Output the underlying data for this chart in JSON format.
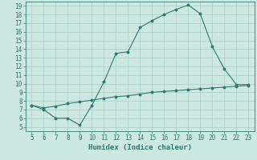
{
  "title": "",
  "xlabel": "Humidex (Indice chaleur)",
  "xlim": [
    4.5,
    23.5
  ],
  "ylim": [
    4.5,
    19.5
  ],
  "xticks": [
    5,
    6,
    7,
    8,
    9,
    10,
    11,
    12,
    13,
    14,
    15,
    16,
    17,
    18,
    19,
    20,
    21,
    22,
    23
  ],
  "yticks": [
    5,
    6,
    7,
    8,
    9,
    10,
    11,
    12,
    13,
    14,
    15,
    16,
    17,
    18,
    19
  ],
  "line1_x": [
    5,
    6,
    7,
    8,
    9,
    10,
    11,
    12,
    13,
    14,
    15,
    16,
    17,
    18,
    19,
    20,
    21,
    22,
    23
  ],
  "line1_y": [
    7.5,
    7.0,
    6.0,
    6.0,
    5.2,
    7.5,
    10.2,
    13.5,
    13.7,
    16.5,
    17.3,
    18.0,
    18.6,
    19.1,
    18.1,
    14.3,
    11.7,
    9.9,
    9.9
  ],
  "line2_x": [
    5,
    6,
    7,
    8,
    9,
    10,
    11,
    12,
    13,
    14,
    15,
    16,
    17,
    18,
    19,
    20,
    21,
    22,
    23
  ],
  "line2_y": [
    7.5,
    7.2,
    7.4,
    7.7,
    7.9,
    8.1,
    8.3,
    8.5,
    8.6,
    8.8,
    9.0,
    9.1,
    9.2,
    9.3,
    9.4,
    9.5,
    9.6,
    9.7,
    9.8
  ],
  "line_color": "#2e7d6e",
  "bg_color": "#cce8e0",
  "grid_color": "#aacfc8",
  "tick_fontsize": 5.5,
  "xlabel_fontsize": 6.5
}
